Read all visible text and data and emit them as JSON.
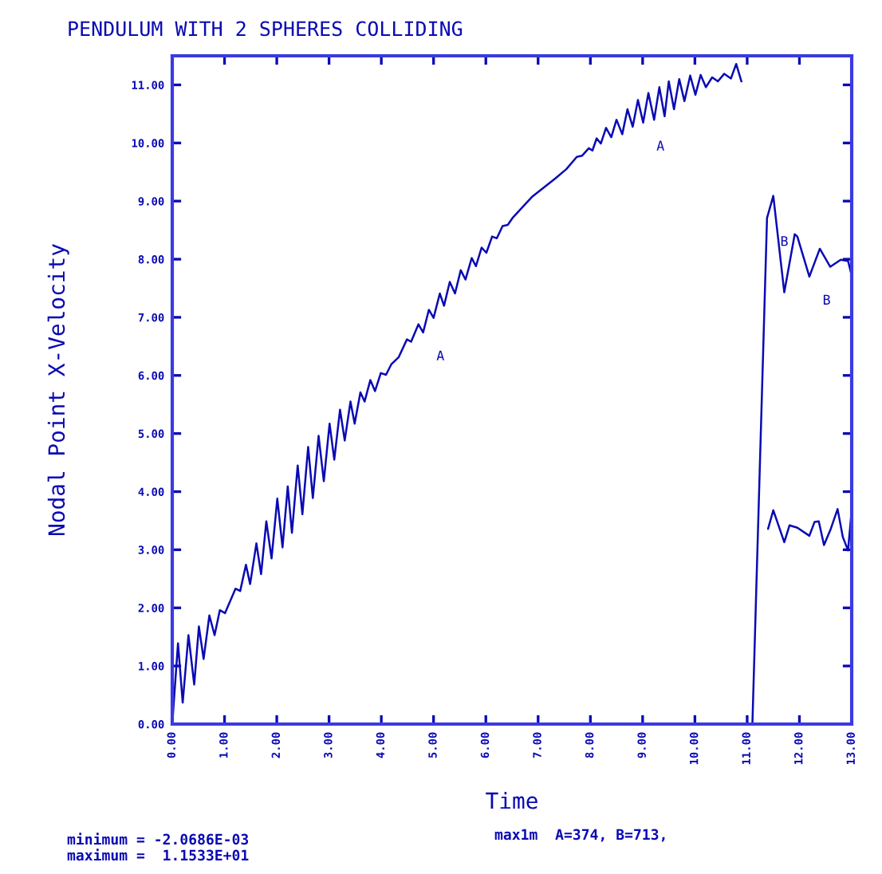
{
  "chart_data": {
    "type": "line",
    "title": "PENDULUM WITH 2 SPHERES COLLIDING",
    "xlabel": "Time",
    "ylabel": "Nodal Point X-Velocity",
    "xlim": [
      0,
      13
    ],
    "ylim": [
      0,
      11.5
    ],
    "xticks": [
      {
        "value": 0,
        "label": "0.00"
      },
      {
        "value": 1,
        "label": "1.00"
      },
      {
        "value": 2,
        "label": "2.00"
      },
      {
        "value": 3,
        "label": "3.00"
      },
      {
        "value": 4,
        "label": "4.00"
      },
      {
        "value": 5,
        "label": "5.00"
      },
      {
        "value": 6,
        "label": "6.00"
      },
      {
        "value": 7,
        "label": "7.00"
      },
      {
        "value": 8,
        "label": "8.00"
      },
      {
        "value": 9,
        "label": "9.00"
      },
      {
        "value": 10,
        "label": "10.00"
      },
      {
        "value": 11,
        "label": "11.00"
      },
      {
        "value": 12,
        "label": "12.00"
      },
      {
        "value": 13,
        "label": "13.00"
      }
    ],
    "yticks": [
      {
        "value": 0,
        "label": "0.00"
      },
      {
        "value": 1,
        "label": "1.00"
      },
      {
        "value": 2,
        "label": "2.00"
      },
      {
        "value": 3,
        "label": "3.00"
      },
      {
        "value": 4,
        "label": "4.00"
      },
      {
        "value": 5,
        "label": "5.00"
      },
      {
        "value": 6,
        "label": "6.00"
      },
      {
        "value": 7,
        "label": "7.00"
      },
      {
        "value": 8,
        "label": "8.00"
      },
      {
        "value": 9,
        "label": "9.00"
      },
      {
        "value": 10,
        "label": "10.00"
      },
      {
        "value": 11,
        "label": "11.00"
      }
    ],
    "grid": false,
    "legend": false,
    "marker": "none",
    "line_style": "solid",
    "series": [
      {
        "name": "A",
        "color": "#0a0ab4",
        "x": [
          0,
          0.11,
          0.2,
          0.31,
          0.42,
          0.51,
          0.6,
          0.71,
          0.81,
          0.91,
          1.01,
          1.21,
          1.3,
          1.41,
          1.49,
          1.61,
          1.7,
          1.8,
          1.9,
          2.01,
          2.11,
          2.21,
          2.29,
          2.4,
          2.49,
          2.6,
          2.69,
          2.8,
          2.9,
          3.01,
          3.1,
          3.21,
          3.3,
          3.41,
          3.49,
          3.6,
          3.68,
          3.79,
          3.88,
          3.99,
          4.09,
          4.19,
          4.33,
          4.49,
          4.57,
          4.71,
          4.8,
          4.91,
          5.0,
          5.12,
          5.2,
          5.31,
          5.41,
          5.52,
          5.61,
          5.73,
          5.81,
          5.92,
          6.01,
          6.12,
          6.21,
          6.32,
          6.42,
          6.52,
          6.88,
          7.33,
          7.54,
          7.74,
          7.84,
          7.97,
          8.04,
          8.12,
          8.2,
          8.3,
          8.4,
          8.5,
          8.61,
          8.71,
          8.81,
          8.91,
          9.01,
          9.11,
          9.22,
          9.32,
          9.42,
          9.5,
          9.6,
          9.7,
          9.8,
          9.91,
          10.01,
          10.11,
          10.21,
          10.33,
          10.44,
          10.56,
          10.69,
          10.79,
          10.89,
          11.0,
          11.07,
          11.4,
          11.5,
          11.71,
          11.81,
          11.96,
          12.19,
          12.29,
          12.37,
          12.47,
          12.6,
          12.73,
          12.83,
          12.93,
          13.0
        ],
        "values": [
          0,
          1.39,
          0.37,
          1.53,
          0.68,
          1.68,
          1.12,
          1.87,
          1.53,
          1.96,
          1.91,
          2.33,
          2.29,
          2.74,
          2.41,
          3.11,
          2.58,
          3.49,
          2.85,
          3.88,
          3.04,
          4.09,
          3.29,
          4.45,
          3.61,
          4.77,
          3.89,
          4.96,
          4.18,
          5.17,
          4.55,
          5.41,
          4.88,
          5.55,
          5.17,
          5.71,
          5.55,
          5.92,
          5.73,
          6.04,
          6.01,
          6.19,
          6.31,
          6.62,
          6.58,
          6.88,
          6.74,
          7.13,
          6.99,
          7.41,
          7.2,
          7.61,
          7.41,
          7.81,
          7.65,
          8.02,
          7.88,
          8.2,
          8.11,
          8.39,
          8.36,
          8.57,
          8.59,
          8.72,
          9.07,
          9.39,
          9.55,
          9.76,
          9.78,
          9.91,
          9.87,
          10.08,
          9.99,
          10.26,
          10.1,
          10.4,
          10.15,
          10.58,
          10.28,
          10.74,
          10.35,
          10.86,
          10.4,
          10.96,
          10.46,
          11.06,
          10.58,
          11.1,
          10.72,
          11.16,
          10.83,
          11.17,
          10.96,
          11.13,
          11.06,
          11.19,
          11.11,
          11.36,
          11.06,
          null,
          null,
          3.36,
          3.68,
          3.13,
          3.42,
          3.38,
          3.24,
          3.48,
          3.49,
          3.08,
          3.36,
          3.7,
          3.22,
          2.99,
          3.68
        ]
      },
      {
        "name": "B",
        "color": "#0a0ab4",
        "x": [
          0,
          2,
          4,
          6,
          8,
          10,
          11.1,
          11.38,
          11.5,
          11.71,
          11.91,
          11.96,
          12.19,
          12.39,
          12.59,
          12.79,
          12.93,
          13.0
        ],
        "values": [
          0,
          0,
          0,
          0,
          0,
          0,
          0,
          8.71,
          9.09,
          7.43,
          8.43,
          8.39,
          7.7,
          8.18,
          7.87,
          7.99,
          7.97,
          7.72
        ]
      }
    ],
    "annotations": [
      "minimum = -2.0686E-03",
      "maximum =  1.1533E+01",
      "max1m  A=374, B=713,"
    ]
  }
}
